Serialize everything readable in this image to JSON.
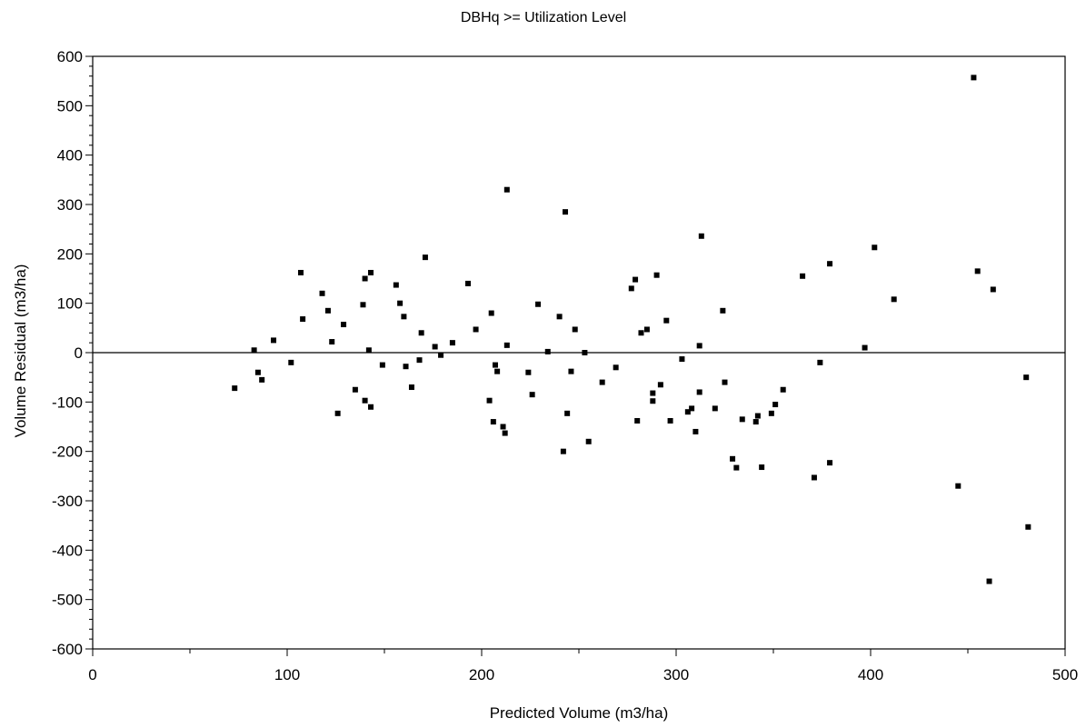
{
  "chart_data": {
    "type": "scatter",
    "title": "DBHq >= Utilization Level",
    "xlabel": "Predicted Volume (m3/ha)",
    "ylabel": "Volume Residual (m3/ha)",
    "xlim": [
      0,
      500
    ],
    "ylim": [
      -600,
      600
    ],
    "xticks": [
      0,
      100,
      200,
      300,
      400,
      500
    ],
    "yticks": [
      -600,
      -500,
      -400,
      -300,
      -200,
      -100,
      0,
      100,
      200,
      300,
      400,
      500,
      600
    ],
    "reference_line_y": 0,
    "grid": false,
    "legend": "none",
    "marker_color": "#000000",
    "points": [
      [
        73,
        -72
      ],
      [
        83,
        5
      ],
      [
        85,
        -40
      ],
      [
        87,
        -55
      ],
      [
        93,
        25
      ],
      [
        102,
        -20
      ],
      [
        107,
        162
      ],
      [
        108,
        68
      ],
      [
        118,
        120
      ],
      [
        121,
        85
      ],
      [
        123,
        22
      ],
      [
        126,
        -123
      ],
      [
        129,
        57
      ],
      [
        135,
        -75
      ],
      [
        139,
        97
      ],
      [
        140,
        150
      ],
      [
        140,
        -97
      ],
      [
        142,
        5
      ],
      [
        143,
        -110
      ],
      [
        143,
        162
      ],
      [
        149,
        -25
      ],
      [
        156,
        137
      ],
      [
        158,
        100
      ],
      [
        160,
        73
      ],
      [
        161,
        -28
      ],
      [
        164,
        -70
      ],
      [
        168,
        -15
      ],
      [
        169,
        40
      ],
      [
        171,
        193
      ],
      [
        176,
        12
      ],
      [
        179,
        -5
      ],
      [
        185,
        20
      ],
      [
        193,
        140
      ],
      [
        197,
        47
      ],
      [
        204,
        -97
      ],
      [
        205,
        80
      ],
      [
        206,
        -140
      ],
      [
        207,
        -25
      ],
      [
        208,
        -38
      ],
      [
        211,
        -150
      ],
      [
        212,
        -163
      ],
      [
        213,
        330
      ],
      [
        213,
        15
      ],
      [
        224,
        -40
      ],
      [
        226,
        -85
      ],
      [
        229,
        98
      ],
      [
        234,
        2
      ],
      [
        240,
        73
      ],
      [
        242,
        -200
      ],
      [
        243,
        285
      ],
      [
        244,
        -123
      ],
      [
        246,
        -38
      ],
      [
        248,
        47
      ],
      [
        253,
        0
      ],
      [
        255,
        -180
      ],
      [
        262,
        -60
      ],
      [
        269,
        -30
      ],
      [
        277,
        130
      ],
      [
        279,
        148
      ],
      [
        280,
        -138
      ],
      [
        282,
        40
      ],
      [
        285,
        47
      ],
      [
        288,
        -98
      ],
      [
        288,
        -82
      ],
      [
        290,
        157
      ],
      [
        292,
        -65
      ],
      [
        295,
        65
      ],
      [
        297,
        -138
      ],
      [
        303,
        -13
      ],
      [
        306,
        -120
      ],
      [
        308,
        -113
      ],
      [
        310,
        -160
      ],
      [
        312,
        14
      ],
      [
        312,
        -80
      ],
      [
        313,
        236
      ],
      [
        320,
        -113
      ],
      [
        324,
        85
      ],
      [
        325,
        -60
      ],
      [
        329,
        -215
      ],
      [
        331,
        -233
      ],
      [
        334,
        -135
      ],
      [
        341,
        -140
      ],
      [
        342,
        -128
      ],
      [
        344,
        -232
      ],
      [
        349,
        -123
      ],
      [
        351,
        -105
      ],
      [
        355,
        -75
      ],
      [
        365,
        155
      ],
      [
        371,
        -253
      ],
      [
        374,
        -20
      ],
      [
        379,
        180
      ],
      [
        379,
        -223
      ],
      [
        397,
        10
      ],
      [
        402,
        213
      ],
      [
        412,
        108
      ],
      [
        445,
        -270
      ],
      [
        453,
        557
      ],
      [
        455,
        165
      ],
      [
        461,
        -463
      ],
      [
        463,
        128
      ],
      [
        480,
        -50
      ],
      [
        481,
        -353
      ]
    ]
  }
}
